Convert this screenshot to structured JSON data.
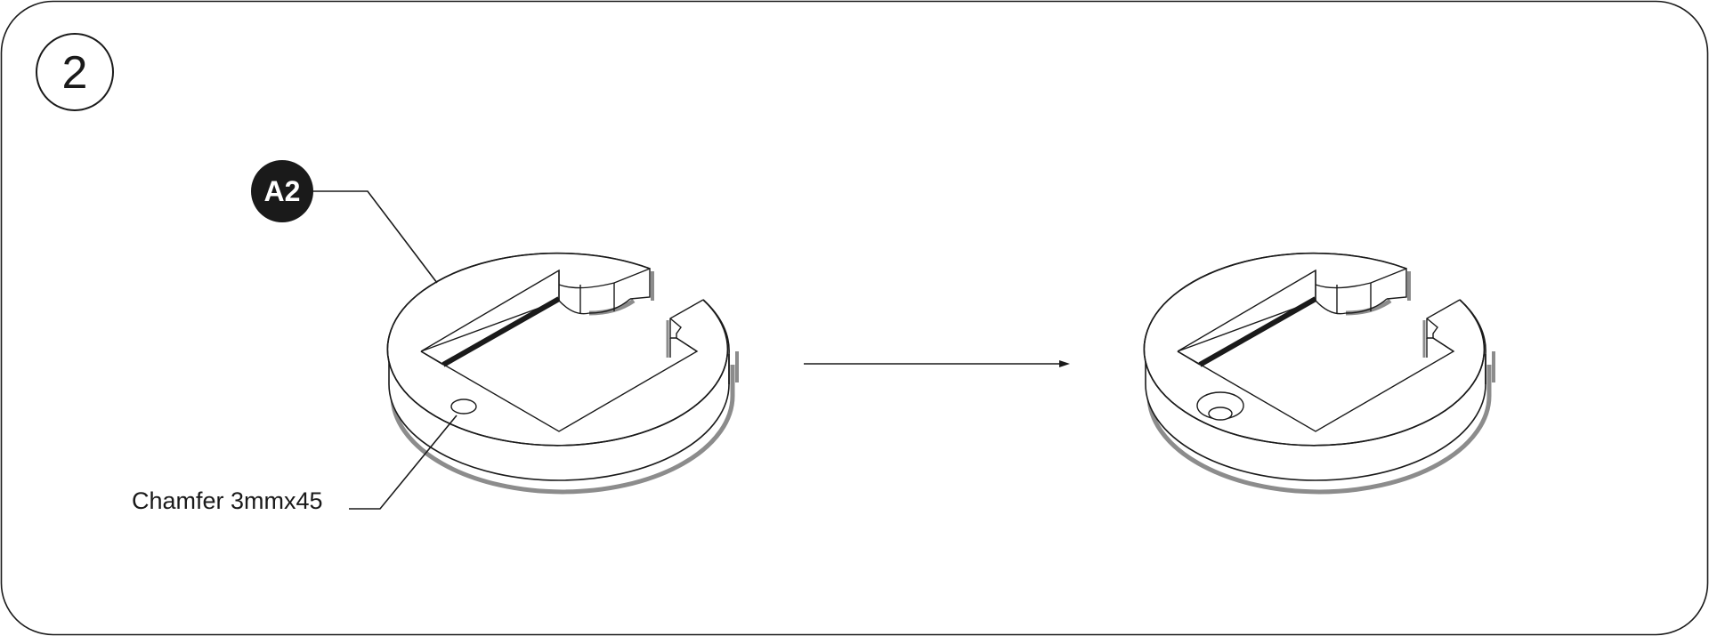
{
  "step": {
    "number": "2"
  },
  "callouts": {
    "part_label": "A2",
    "chamfer_label": "Chamfer 3mmx45"
  },
  "colors": {
    "line": "#1a1a1a",
    "shadow": "#8c8c8c",
    "badge_fill": "#1a1a1a",
    "badge_text": "#ffffff",
    "face": "#ffffff"
  }
}
